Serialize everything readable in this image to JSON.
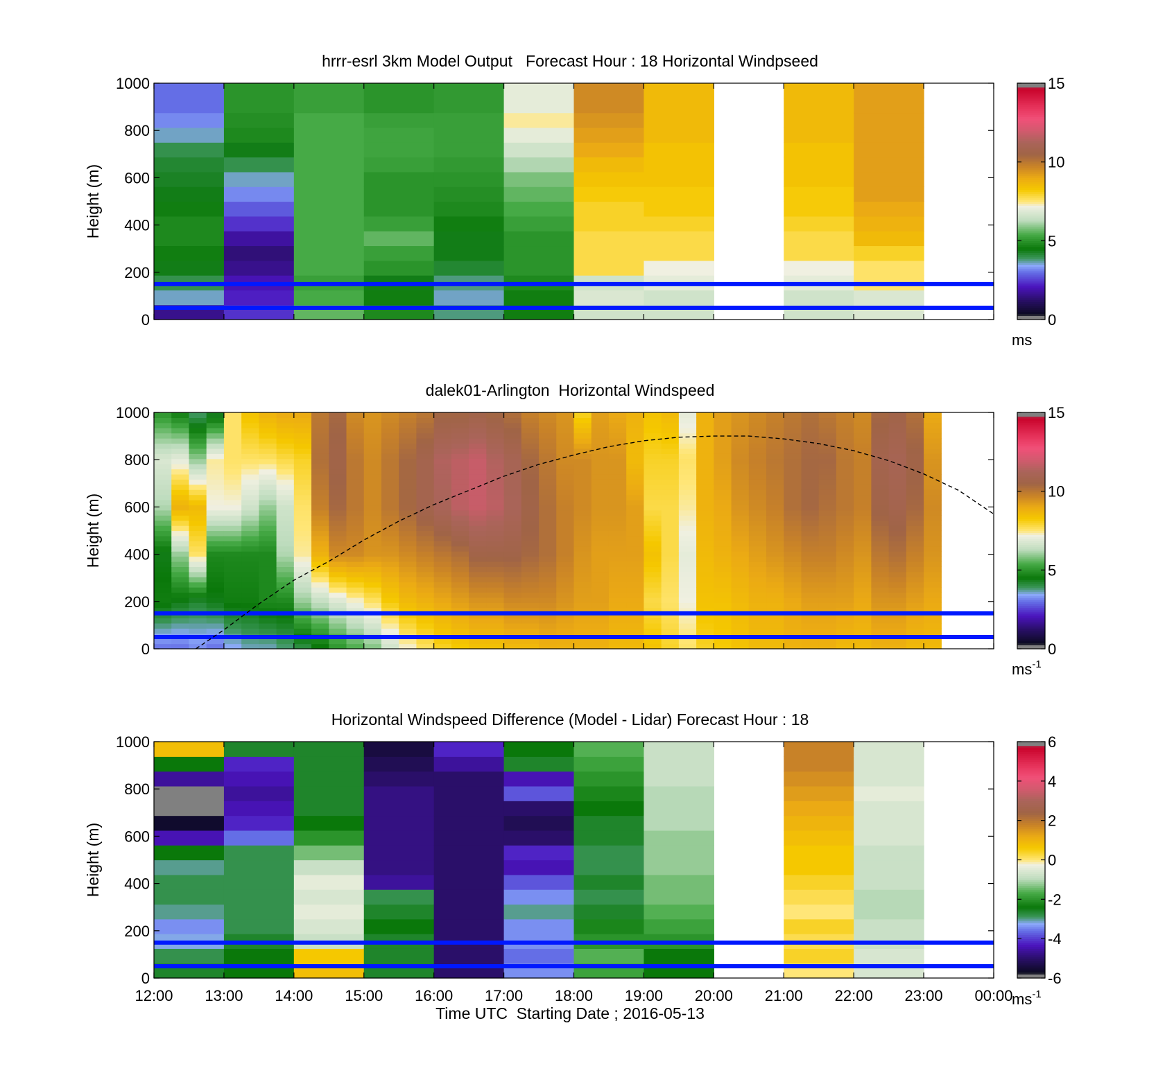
{
  "chart_data": [
    {
      "type": "heatmap",
      "title": "hrrr-esrl 3km Model Output   Forecast Hour : 18 Horizontal Windpseed",
      "ylabel": "Height (m)",
      "xlabel": "",
      "ylim": [
        0,
        1000
      ],
      "yticks": [
        "0",
        "200",
        "400",
        "600",
        "800",
        "1000"
      ],
      "xlim_hours": [
        12,
        24
      ],
      "colorbar": {
        "range": [
          0,
          15
        ],
        "ticks": [
          "0",
          "5",
          "10",
          "15"
        ],
        "unit": "ms",
        "unit_sup": ""
      },
      "reference_lines_m": [
        50,
        150
      ],
      "resolution": "hourly",
      "profiles": [
        [
          1.6,
          3.6,
          4.0,
          4.4,
          4.6,
          4.8,
          4.8,
          4.6,
          4.4,
          4.3,
          4.2,
          4.0,
          3.6,
          3.2,
          3.0,
          3.0
        ],
        [
          2.4,
          2.2,
          2.0,
          1.6,
          1.4,
          1.8,
          2.4,
          2.8,
          3.2,
          3.6,
          4.0,
          4.4,
          4.8,
          4.9,
          5.0,
          5.0
        ],
        [
          5.6,
          5.4,
          5.2,
          5.4,
          5.4,
          5.4,
          5.4,
          5.4,
          5.4,
          5.4,
          5.4,
          5.4,
          5.4,
          5.4,
          5.2,
          5.2
        ],
        [
          4.8,
          4.6,
          4.4,
          5.0,
          5.2,
          5.6,
          5.2,
          5.0,
          5.0,
          5.0,
          5.2,
          5.3,
          5.3,
          5.2,
          5.0,
          5.0
        ],
        [
          3.8,
          3.6,
          3.8,
          4.2,
          4.4,
          4.4,
          4.6,
          4.8,
          4.9,
          5.0,
          5.1,
          5.2,
          5.2,
          5.2,
          5.1,
          5.1
        ],
        [
          4.6,
          4.6,
          4.8,
          5.0,
          5.0,
          5.0,
          5.2,
          5.4,
          5.6,
          5.8,
          6.2,
          6.6,
          7.0,
          7.4,
          7.0,
          7.0
        ],
        [
          6.6,
          6.8,
          6.6,
          7.8,
          7.8,
          7.8,
          8.0,
          8.0,
          8.2,
          8.4,
          8.6,
          9.0,
          9.2,
          9.4,
          9.6,
          9.6
        ],
        [
          6.6,
          6.6,
          7.0,
          7.2,
          7.8,
          7.8,
          8.0,
          8.2,
          8.2,
          8.4,
          8.4,
          8.4,
          8.6,
          8.6,
          8.6,
          8.6
        ],
        [
          null,
          null,
          null,
          null,
          null,
          null,
          null,
          null,
          null,
          null,
          null,
          null,
          null,
          null,
          null,
          null
        ],
        [
          6.6,
          6.6,
          7.0,
          7.2,
          7.8,
          7.8,
          8.0,
          8.2,
          8.2,
          8.4,
          8.4,
          8.4,
          8.6,
          8.6,
          8.6,
          8.6
        ],
        [
          6.8,
          6.8,
          7.6,
          7.6,
          8.0,
          8.6,
          8.8,
          9.0,
          9.2,
          9.2,
          9.2,
          9.2,
          9.2,
          9.2,
          9.2,
          9.2
        ],
        [
          null,
          null,
          null,
          null,
          null,
          null,
          null,
          null,
          null,
          null,
          null,
          null,
          null,
          null,
          null,
          null
        ]
      ]
    },
    {
      "type": "heatmap",
      "title": "dalek01-Arlington  Horizontal Windspeed",
      "ylabel": "Height (m)",
      "xlabel": "",
      "ylim": [
        0,
        1000
      ],
      "yticks": [
        "0",
        "200",
        "400",
        "600",
        "800",
        "1000"
      ],
      "xlim_hours": [
        12,
        24
      ],
      "colorbar": {
        "range": [
          0,
          15
        ],
        "ticks": [
          "0",
          "5",
          "10",
          "15"
        ],
        "unit": "ms",
        "unit_sup": "-1"
      },
      "reference_lines_m": [
        50,
        150
      ],
      "resolution": "quarter-hourly",
      "profile_levels_m": [
        0,
        200,
        400,
        600,
        800,
        1000
      ],
      "profiles": [
        [
          3.0,
          4.6,
          4.4,
          6.2,
          6.8,
          5.0
        ],
        [
          3.0,
          4.4,
          6.0,
          8.8,
          7.0,
          4.6
        ],
        [
          3.2,
          4.2,
          7.6,
          8.6,
          6.0,
          3.8
        ],
        [
          3.0,
          4.4,
          4.8,
          7.2,
          7.4,
          4.2
        ],
        [
          3.4,
          4.6,
          4.8,
          7.2,
          7.6,
          7.6
        ],
        [
          3.6,
          4.6,
          4.8,
          6.6,
          7.6,
          8.4
        ],
        [
          3.6,
          4.8,
          4.8,
          6.0,
          7.6,
          8.8
        ],
        [
          3.8,
          4.8,
          6.2,
          6.6,
          7.8,
          9.0
        ],
        [
          4.0,
          6.0,
          7.4,
          7.6,
          8.0,
          9.0
        ],
        [
          4.4,
          6.4,
          8.8,
          9.8,
          10.2,
          10.0
        ],
        [
          5.0,
          6.8,
          9.6,
          10.4,
          10.6,
          10.4
        ],
        [
          5.4,
          7.2,
          9.6,
          10.0,
          10.0,
          9.6
        ],
        [
          5.8,
          7.6,
          9.4,
          9.6,
          9.6,
          9.4
        ],
        [
          6.6,
          8.2,
          9.4,
          10.0,
          10.0,
          9.6
        ],
        [
          7.2,
          8.6,
          9.6,
          10.4,
          10.4,
          9.8
        ],
        [
          7.6,
          8.8,
          9.8,
          10.8,
          10.8,
          10.0
        ],
        [
          8.0,
          9.0,
          10.0,
          11.2,
          11.4,
          10.4
        ],
        [
          8.2,
          9.2,
          10.2,
          11.6,
          11.6,
          10.4
        ],
        [
          8.4,
          9.4,
          10.6,
          11.8,
          11.8,
          10.6
        ],
        [
          8.4,
          9.4,
          10.6,
          11.6,
          11.4,
          10.4
        ],
        [
          8.6,
          9.6,
          10.6,
          11.2,
          11.0,
          10.2
        ],
        [
          8.6,
          9.6,
          10.4,
          10.6,
          10.4,
          9.8
        ],
        [
          8.8,
          9.6,
          10.2,
          10.2,
          10.0,
          9.6
        ],
        [
          8.8,
          9.4,
          9.8,
          9.8,
          9.6,
          9.4
        ],
        [
          8.8,
          9.2,
          9.4,
          9.6,
          9.6,
          8.0
        ],
        [
          8.8,
          9.2,
          9.2,
          9.4,
          9.4,
          9.2
        ],
        [
          8.6,
          9.0,
          9.2,
          9.4,
          9.4,
          9.0
        ],
        [
          8.6,
          9.0,
          9.2,
          9.2,
          8.6,
          8.8
        ],
        [
          8.4,
          7.8,
          8.4,
          7.8,
          8.0,
          8.4
        ],
        [
          8.0,
          7.6,
          7.8,
          7.8,
          8.0,
          8.6
        ],
        [
          7.6,
          7.2,
          7.0,
          7.4,
          7.6,
          7.0
        ],
        [
          8.0,
          8.4,
          8.6,
          8.8,
          8.8,
          8.8
        ],
        [
          8.2,
          8.4,
          8.8,
          9.0,
          9.2,
          9.2
        ],
        [
          8.4,
          8.6,
          9.0,
          9.4,
          9.6,
          9.4
        ],
        [
          8.6,
          8.8,
          9.2,
          9.6,
          9.8,
          9.6
        ],
        [
          8.6,
          8.8,
          9.4,
          9.8,
          10.0,
          9.8
        ],
        [
          8.8,
          9.0,
          9.6,
          10.2,
          10.2,
          10.0
        ],
        [
          8.8,
          9.2,
          9.8,
          10.4,
          10.4,
          10.2
        ],
        [
          8.8,
          9.2,
          9.8,
          10.2,
          10.4,
          10.0
        ],
        [
          8.6,
          9.2,
          9.6,
          10.0,
          10.0,
          9.8
        ],
        [
          8.6,
          9.0,
          9.4,
          9.8,
          9.8,
          9.6
        ],
        [
          8.8,
          9.4,
          10.0,
          10.6,
          10.8,
          10.4
        ],
        [
          8.8,
          9.4,
          10.2,
          10.8,
          11.0,
          10.6
        ],
        [
          8.6,
          9.2,
          9.8,
          10.4,
          10.6,
          10.2
        ],
        [
          8.6,
          9.0,
          9.4,
          9.6,
          9.4,
          9.0
        ],
        [
          null,
          null,
          null,
          null,
          null,
          null
        ],
        [
          null,
          null,
          null,
          null,
          null,
          null
        ],
        [
          null,
          null,
          null,
          null,
          null,
          null
        ]
      ],
      "overlay_curve": {
        "style": "dashed",
        "points": [
          [
            12.6,
            0
          ],
          [
            13.0,
            80
          ],
          [
            13.5,
            190
          ],
          [
            14.0,
            290
          ],
          [
            14.5,
            370
          ],
          [
            15.0,
            460
          ],
          [
            15.5,
            540
          ],
          [
            16.0,
            610
          ],
          [
            16.5,
            670
          ],
          [
            17.0,
            730
          ],
          [
            17.5,
            780
          ],
          [
            18.0,
            820
          ],
          [
            18.5,
            855
          ],
          [
            19.0,
            880
          ],
          [
            19.5,
            895
          ],
          [
            20.0,
            900
          ],
          [
            20.5,
            900
          ],
          [
            21.0,
            888
          ],
          [
            21.5,
            868
          ],
          [
            22.0,
            838
          ],
          [
            22.5,
            796
          ],
          [
            23.0,
            740
          ],
          [
            23.5,
            670
          ],
          [
            24.0,
            570
          ]
        ]
      }
    },
    {
      "type": "heatmap",
      "title": "Horizontal Windspeed Difference (Model - Lidar) Forecast Hour : 18",
      "ylabel": "Height (m)",
      "xlabel": "Time UTC  Starting Date ; 2016-05-13",
      "ylim": [
        0,
        1000
      ],
      "yticks": [
        "0",
        "200",
        "400",
        "600",
        "800",
        "1000"
      ],
      "xlim_hours": [
        12,
        24
      ],
      "xticks": [
        "12:00",
        "13:00",
        "14:00",
        "15:00",
        "16:00",
        "17:00",
        "18:00",
        "19:00",
        "20:00",
        "21:00",
        "22:00",
        "23:00",
        "00:00"
      ],
      "colorbar": {
        "range": [
          -6,
          6
        ],
        "ticks": [
          "-6",
          "-4",
          "-2",
          "0",
          "2",
          "4",
          "6"
        ],
        "unit": "ms",
        "unit_sup": "-1"
      },
      "reference_lines_m": [
        50,
        150
      ],
      "resolution": "hourly",
      "profiles": [
        [
          -2.6,
          -2.8,
          -3.2,
          -3.4,
          -3.0,
          -2.8,
          -2.8,
          -3.0,
          -2.4,
          -4.4,
          -5.6,
          -6.0,
          -5.8,
          -4.6,
          -2.4,
          0.8
        ],
        [
          -2.4,
          -2.4,
          -2.6,
          -2.8,
          -2.8,
          -2.8,
          -2.8,
          -2.8,
          -2.8,
          -3.6,
          -4.2,
          -4.4,
          -4.6,
          -4.4,
          -4.2,
          -2.6
        ],
        [
          0.8,
          0.6,
          -0.8,
          -0.6,
          -0.4,
          -0.6,
          -0.4,
          -0.8,
          -1.4,
          -2.0,
          -2.4,
          -2.6,
          -2.6,
          -2.6,
          -2.6,
          -2.6
        ],
        [
          -2.6,
          -2.6,
          -2.6,
          -2.4,
          -2.6,
          -2.8,
          -4.6,
          -4.8,
          -4.8,
          -4.8,
          -4.8,
          -4.8,
          -4.8,
          -5.0,
          -5.2,
          -5.4
        ],
        [
          -5.0,
          -5.0,
          -5.0,
          -5.0,
          -5.0,
          -5.0,
          -5.0,
          -5.0,
          -5.0,
          -5.0,
          -5.0,
          -5.0,
          -5.0,
          -5.0,
          -4.6,
          -4.2
        ],
        [
          -3.4,
          -3.6,
          -3.4,
          -3.4,
          -3.0,
          -3.4,
          -3.8,
          -4.4,
          -4.2,
          -5.0,
          -5.2,
          -5.0,
          -3.8,
          -4.4,
          -2.6,
          -2.4
        ],
        [
          -1.8,
          -1.6,
          -2.0,
          -2.2,
          -2.6,
          -2.8,
          -2.6,
          -2.8,
          -2.8,
          -2.6,
          -2.6,
          -2.4,
          -2.2,
          -2.0,
          -1.8,
          -1.6
        ],
        [
          -2.4,
          -2.4,
          -2.0,
          -1.8,
          -1.6,
          -1.4,
          -1.4,
          -1.2,
          -1.2,
          -1.2,
          -1.0,
          -1.0,
          -1.0,
          -0.8,
          -0.8,
          -0.8
        ],
        [
          null,
          null,
          null,
          null,
          null,
          null,
          null,
          null,
          null,
          null,
          null,
          null,
          null,
          null,
          null,
          null
        ],
        [
          0.0,
          0.4,
          0.2,
          0.4,
          0.0,
          0.2,
          0.4,
          0.6,
          0.6,
          0.8,
          1.0,
          1.2,
          1.4,
          1.6,
          1.8,
          1.8
        ],
        [
          -0.6,
          -0.6,
          -0.8,
          -0.8,
          -1.0,
          -1.0,
          -0.8,
          -0.8,
          -0.8,
          -0.6,
          -0.6,
          -0.6,
          -0.4,
          -0.6,
          -0.6,
          -0.6
        ],
        [
          null,
          null,
          null,
          null,
          null,
          null,
          null,
          null,
          null,
          null,
          null,
          null,
          null,
          null,
          null,
          null
        ]
      ]
    }
  ]
}
